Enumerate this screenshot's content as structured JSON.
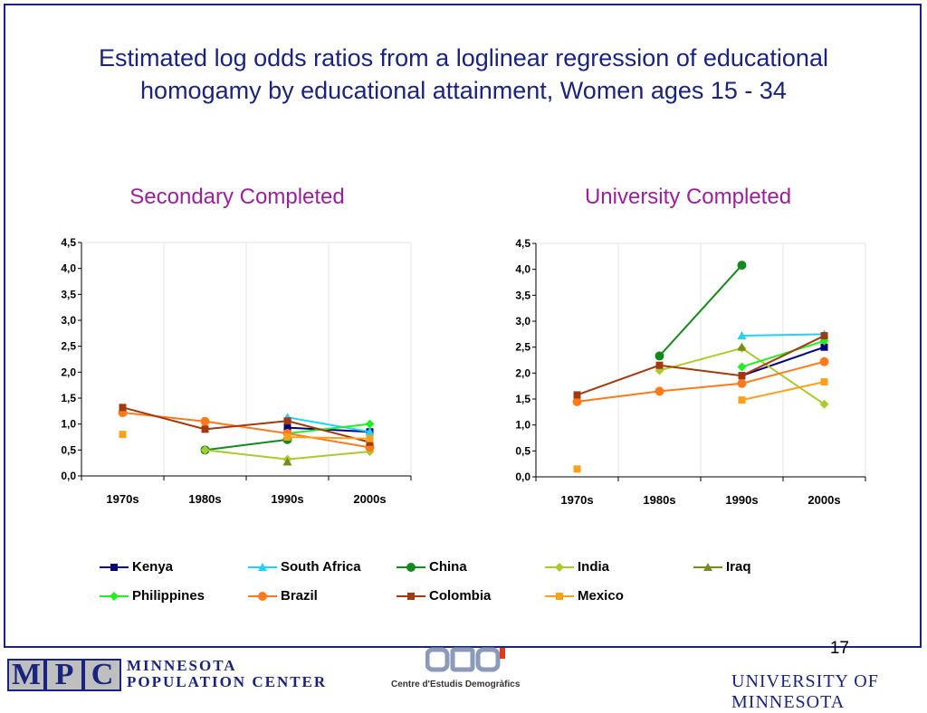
{
  "title_line1": "Estimated log odds ratios from a loglinear regression of educational",
  "title_line2": "homogamy by educational attainment, Women ages 15 - 34",
  "page_number": "17",
  "colors": {
    "Kenya": "#000080",
    "South Africa": "#1fd2ff",
    "China": "#138a1e",
    "India": "#a8cc2c",
    "Iraq": "#7a8a1c",
    "Philippines": "#22ee22",
    "Brazil": "#ff7a1a",
    "Colombia": "#a3390f",
    "Mexico": "#ffa01a"
  },
  "markers": {
    "Kenya": "square",
    "South Africa": "triangle",
    "China": "circle",
    "India": "diamond",
    "Iraq": "triangle",
    "Philippines": "diamond",
    "Brazil": "circle",
    "Colombia": "square",
    "Mexico": "square"
  },
  "legend": [
    "Kenya",
    "South Africa",
    "China",
    "India",
    "Iraq",
    "Philippines",
    "Brazil",
    "Colombia",
    "Mexico"
  ],
  "footer": {
    "mpc_letters": [
      "M",
      "P",
      "C"
    ],
    "mpc_line1": "MINNESOTA",
    "mpc_line2": "POPULATION CENTER",
    "ced_text": "Centre d'Estudis Demogràfics",
    "umn_text": "UNIVERSITY OF MINNESOTA"
  },
  "chart_data": [
    {
      "type": "line",
      "title": "Secondary Completed",
      "categories": [
        "1970s",
        "1980s",
        "1990s",
        "2000s"
      ],
      "ylim": [
        0,
        4.5
      ],
      "yticks": [
        "0,0",
        "0,5",
        "1,0",
        "1,5",
        "2,0",
        "2,5",
        "3,0",
        "3,5",
        "4,0",
        "4,5"
      ],
      "series": [
        {
          "name": "Kenya",
          "values": [
            null,
            null,
            0.93,
            0.85
          ]
        },
        {
          "name": "South Africa",
          "values": [
            null,
            null,
            1.13,
            0.85
          ]
        },
        {
          "name": "China",
          "values": [
            null,
            0.5,
            0.7,
            null
          ]
        },
        {
          "name": "India",
          "values": [
            null,
            0.5,
            0.32,
            0.47
          ]
        },
        {
          "name": "Iraq",
          "values": [
            null,
            null,
            0.27,
            null
          ]
        },
        {
          "name": "Philippines",
          "values": [
            null,
            null,
            0.82,
            1.0
          ]
        },
        {
          "name": "Brazil",
          "values": [
            1.22,
            1.05,
            0.82,
            0.55
          ]
        },
        {
          "name": "Colombia",
          "values": [
            1.32,
            0.9,
            1.06,
            0.65
          ]
        },
        {
          "name": "Mexico",
          "values": [
            0.8,
            null,
            0.75,
            0.72
          ]
        }
      ]
    },
    {
      "type": "line",
      "title": "University Completed",
      "categories": [
        "1970s",
        "1980s",
        "1990s",
        "2000s"
      ],
      "ylim": [
        0,
        4.5
      ],
      "yticks": [
        "0,0",
        "0,5",
        "1,0",
        "1,5",
        "2,0",
        "2,5",
        "3,0",
        "3,5",
        "4,0",
        "4,5"
      ],
      "series": [
        {
          "name": "Kenya",
          "values": [
            null,
            null,
            1.95,
            2.5
          ]
        },
        {
          "name": "South Africa",
          "values": [
            null,
            null,
            2.72,
            2.75
          ]
        },
        {
          "name": "China",
          "values": [
            null,
            2.33,
            4.08,
            null
          ]
        },
        {
          "name": "India",
          "values": [
            null,
            2.05,
            2.48,
            1.4
          ]
        },
        {
          "name": "Iraq",
          "values": [
            null,
            null,
            2.5,
            null
          ]
        },
        {
          "name": "Philippines",
          "values": [
            null,
            null,
            2.12,
            2.62
          ]
        },
        {
          "name": "Brazil",
          "values": [
            1.45,
            1.65,
            1.8,
            2.22
          ]
        },
        {
          "name": "Colombia",
          "values": [
            1.58,
            2.15,
            1.95,
            2.72
          ]
        },
        {
          "name": "Mexico",
          "values": [
            0.15,
            null,
            1.48,
            1.83
          ]
        }
      ]
    }
  ]
}
